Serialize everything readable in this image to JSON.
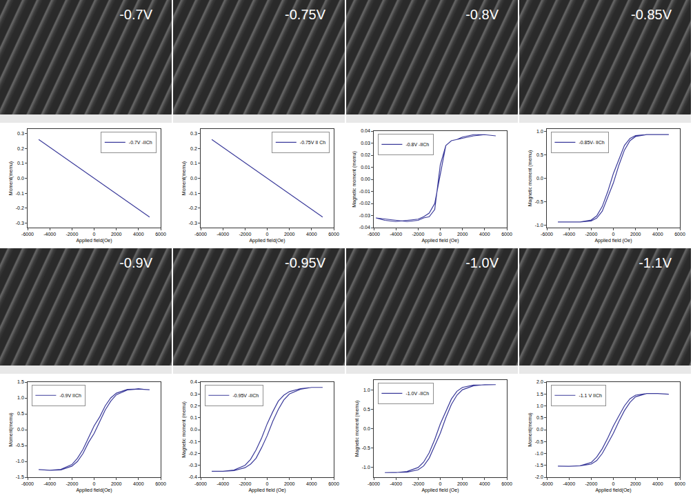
{
  "images": [
    {
      "label": "-0.7V"
    },
    {
      "label": "-0.75V"
    },
    {
      "label": "-0.8V"
    },
    {
      "label": "-0.85V"
    },
    {
      "label": "-0.9V"
    },
    {
      "label": "-0.95V"
    },
    {
      "label": "-1.0V"
    },
    {
      "label": "-1.1V"
    }
  ],
  "chart_data": [
    {
      "type": "line",
      "x_label": "Applied field(Oe)",
      "y_label": "Moment(memu)",
      "legend": "top right",
      "grid": false,
      "xlim": [
        -6000,
        6000
      ],
      "xticks": [
        -6000,
        -4000,
        -2000,
        0,
        2000,
        4000,
        6000
      ],
      "ylim": [
        -0.33,
        0.33
      ],
      "yticks": [
        -0.3,
        -0.2,
        -0.1,
        {
          "value": 0,
          "label": "0.0"
        },
        0.1,
        0.2,
        0.3
      ],
      "x": [
        -5000,
        -2500,
        0,
        2500,
        5000
      ],
      "series": [
        {
          "name": "-0.7V -IICh",
          "color": "#3a3a9a",
          "values": [
            0.26,
            0.13,
            0,
            -0.13,
            -0.26
          ]
        }
      ]
    },
    {
      "type": "line",
      "x_label": "Applied field(Oe)",
      "y_label": "Moment(memu)",
      "legend": "top right",
      "grid": false,
      "xlim": [
        -6000,
        6000
      ],
      "xticks": [
        -6000,
        -4000,
        -2000,
        0,
        2000,
        4000,
        6000
      ],
      "ylim": [
        -0.33,
        0.33
      ],
      "yticks": [
        -0.3,
        -0.2,
        -0.1,
        {
          "value": 0,
          "label": "0.0"
        },
        0.1,
        0.2,
        0.3
      ],
      "x": [
        -5000,
        -2500,
        0,
        2500,
        5000
      ],
      "series": [
        {
          "name": "-0.75V II Ch",
          "color": "#3a3a9a",
          "values": [
            0.26,
            0.13,
            0,
            -0.13,
            -0.26
          ]
        }
      ]
    },
    {
      "type": "line",
      "x_label": "Applied field (Oe)",
      "y_label": "Magnetic moment (memu)",
      "legend": "top left",
      "grid": false,
      "xlim": [
        -6000,
        6000
      ],
      "xticks": [
        -6000,
        -4000,
        -2000,
        0,
        2000,
        4000,
        6000
      ],
      "ylim": [
        -0.04,
        0.04
      ],
      "yticks": [
        -0.04,
        -0.03,
        -0.02,
        -0.01,
        {
          "value": 0,
          "label": "0.00"
        },
        0.01,
        0.02,
        0.03,
        0.04
      ],
      "x": [
        5000,
        4000,
        3000,
        2000,
        1500,
        1000,
        500,
        0,
        -500,
        -1000,
        -1500,
        -2000,
        -3000,
        -4000,
        -5000,
        -5800,
        -5800,
        -5000,
        -4000,
        -3000,
        -2000,
        -1500,
        -1000,
        -500,
        0,
        500,
        1000,
        1500,
        2000,
        3000,
        4000,
        5000
      ],
      "series": [
        {
          "name": "-0.8V -IICh",
          "color": "#3a3a9a",
          "values": [
            0.036,
            0.037,
            0.037,
            0.035,
            0.033,
            0.032,
            0.028,
            0.012,
            -0.025,
            -0.031,
            -0.032,
            -0.034,
            -0.035,
            -0.034,
            -0.033,
            -0.032,
            -0.032,
            -0.034,
            -0.035,
            -0.034,
            -0.033,
            -0.031,
            -0.028,
            -0.02,
            0.005,
            0.028,
            0.032,
            0.033,
            0.034,
            0.036,
            0.037,
            0.036
          ]
        }
      ]
    },
    {
      "type": "line",
      "x_label": "Applied field (Oe)",
      "y_label": "Magnetic moment (memu)",
      "legend": "top left",
      "grid": false,
      "xlim": [
        -6000,
        6000
      ],
      "xticks": [
        -6000,
        -4000,
        -2000,
        0,
        2000,
        4000,
        6000
      ],
      "ylim": [
        -1.05,
        1.05
      ],
      "yticks": [
        {
          "value": -1,
          "label": "-1.0"
        },
        -0.5,
        {
          "value": 0,
          "label": "0.0"
        },
        0.5,
        {
          "value": 1,
          "label": "1.0"
        }
      ],
      "x": [
        5000,
        4000,
        3000,
        2000,
        1500,
        1000,
        500,
        0,
        -500,
        -1000,
        -1500,
        -2000,
        -3000,
        -4000,
        -5000,
        -5000,
        -4000,
        -3000,
        -2000,
        -1500,
        -1000,
        -500,
        0,
        500,
        1000,
        1500,
        2000,
        3000,
        4000,
        5000
      ],
      "series": [
        {
          "name": "-0.85V- IICh",
          "color": "#3a3a9a",
          "values": [
            0.93,
            0.93,
            0.93,
            0.91,
            0.85,
            0.7,
            0.4,
            0.1,
            -0.28,
            -0.6,
            -0.8,
            -0.89,
            -0.93,
            -0.93,
            -0.93,
            -0.93,
            -0.93,
            -0.93,
            -0.91,
            -0.85,
            -0.7,
            -0.4,
            -0.1,
            0.28,
            0.6,
            0.8,
            0.89,
            0.93,
            0.93,
            0.93
          ]
        }
      ]
    },
    {
      "type": "line",
      "x_label": "Applied field(Oe)",
      "y_label": "Moment(memu)",
      "legend": "top left",
      "grid": false,
      "xlim": [
        -6000,
        6000
      ],
      "xticks": [
        -6000,
        -4000,
        -2000,
        0,
        2000,
        4000,
        6000
      ],
      "ylim": [
        -1.5,
        1.5
      ],
      "yticks": [
        -1.5,
        {
          "value": -1,
          "label": "-1.0"
        },
        -0.5,
        {
          "value": 0,
          "label": "0.0"
        },
        0.5,
        {
          "value": 1,
          "label": "1.0"
        },
        1.5
      ],
      "x": [
        5000,
        4000,
        3000,
        2000,
        1500,
        1000,
        500,
        0,
        -500,
        -1000,
        -1500,
        -2000,
        -3000,
        -4000,
        -5000,
        -5000,
        -4000,
        -3000,
        -2000,
        -1500,
        -1000,
        -500,
        0,
        500,
        1000,
        1500,
        2000,
        3000,
        4000,
        5000
      ],
      "series": [
        {
          "name": "-0.9V IICh",
          "color": "#3a3a9a",
          "values": [
            1.26,
            1.28,
            1.27,
            1.15,
            1.0,
            0.75,
            0.4,
            0.12,
            -0.25,
            -0.62,
            -0.9,
            -1.1,
            -1.25,
            -1.28,
            -1.26,
            -1.26,
            -1.28,
            -1.27,
            -1.15,
            -1.0,
            -0.75,
            -0.4,
            -0.12,
            0.25,
            0.62,
            0.9,
            1.1,
            1.25,
            1.28,
            1.26
          ]
        }
      ]
    },
    {
      "type": "line",
      "x_label": "Applied field (Oe)",
      "y_label": "Magnetic moment (memu)",
      "legend": "top left",
      "grid": false,
      "xlim": [
        -6000,
        6000
      ],
      "xticks": [
        -6000,
        -4000,
        -2000,
        0,
        2000,
        4000,
        6000
      ],
      "ylim": [
        -0.4,
        0.4
      ],
      "yticks": [
        -0.4,
        -0.3,
        -0.2,
        -0.1,
        {
          "value": 0,
          "label": "0.0"
        },
        0.1,
        0.2,
        0.3,
        0.4
      ],
      "x": [
        5000,
        4000,
        3000,
        2000,
        1500,
        1000,
        500,
        0,
        -500,
        -1000,
        -1500,
        -2000,
        -3000,
        -4000,
        -5000,
        -5000,
        -4000,
        -3000,
        -2000,
        -1500,
        -1000,
        -500,
        0,
        500,
        1000,
        1500,
        2000,
        3000,
        4000,
        5000
      ],
      "series": [
        {
          "name": "-0.95V -IICh",
          "color": "#3a3a9a",
          "values": [
            0.355,
            0.355,
            0.345,
            0.32,
            0.29,
            0.24,
            0.15,
            0.05,
            -0.07,
            -0.17,
            -0.25,
            -0.3,
            -0.34,
            -0.35,
            -0.35,
            -0.35,
            -0.35,
            -0.345,
            -0.32,
            -0.29,
            -0.24,
            -0.15,
            -0.05,
            0.07,
            0.17,
            0.25,
            0.3,
            0.34,
            0.355,
            0.355
          ]
        }
      ]
    },
    {
      "type": "line",
      "x_label": "Applied field (Oe)",
      "y_label": "Magnetic moment (memu)",
      "legend": "top left",
      "grid": false,
      "xlim": [
        -6000,
        6000
      ],
      "xticks": [
        -6000,
        -4000,
        -2000,
        0,
        2000,
        4000,
        6000
      ],
      "ylim": [
        -1.25,
        1.25
      ],
      "yticks": [
        {
          "value": -1,
          "label": "-1.0"
        },
        -0.5,
        {
          "value": 0,
          "label": "0.0"
        },
        0.5,
        {
          "value": 1,
          "label": "1.0"
        }
      ],
      "x": [
        5000,
        4000,
        3000,
        2000,
        1500,
        1000,
        500,
        0,
        -500,
        -1000,
        -1500,
        -2000,
        -3000,
        -4000,
        -5000,
        -5000,
        -4000,
        -3000,
        -2000,
        -1500,
        -1000,
        -500,
        0,
        500,
        1000,
        1500,
        2000,
        3000,
        4000,
        5000
      ],
      "series": [
        {
          "name": "-1.0V -IICh",
          "color": "#3a3a9a",
          "values": [
            1.13,
            1.13,
            1.12,
            1.06,
            0.96,
            0.76,
            0.44,
            0.12,
            -0.28,
            -0.62,
            -0.86,
            -1.0,
            -1.1,
            -1.13,
            -1.13,
            -1.13,
            -1.13,
            -1.12,
            -1.06,
            -0.96,
            -0.76,
            -0.44,
            -0.12,
            0.28,
            0.62,
            0.86,
            1.0,
            1.1,
            1.13,
            1.13
          ]
        }
      ]
    },
    {
      "type": "line",
      "x_label": "Applied field(Oe)",
      "y_label": "Moment(memu)",
      "legend": "top left",
      "grid": false,
      "xlim": [
        -6000,
        6000
      ],
      "xticks": [
        -6000,
        -4000,
        -2000,
        0,
        2000,
        4000,
        6000
      ],
      "ylim": [
        -2,
        2
      ],
      "yticks": [
        {
          "value": -2,
          "label": "-2.0"
        },
        -1.5,
        {
          "value": -1,
          "label": "-1.0"
        },
        -0.5,
        {
          "value": 0,
          "label": "0.0"
        },
        0.5,
        {
          "value": 1,
          "label": "1.0"
        },
        1.5,
        {
          "value": 2,
          "label": "2.0"
        }
      ],
      "x": [
        5000,
        4000,
        3000,
        2000,
        1500,
        1000,
        500,
        0,
        -500,
        -1000,
        -1500,
        -2000,
        -3000,
        -4000,
        -5000,
        -5000,
        -4000,
        -3000,
        -2000,
        -1500,
        -1000,
        -500,
        0,
        500,
        1000,
        1500,
        2000,
        3000,
        4000,
        5000
      ],
      "series": [
        {
          "name": "-1.1 V IICh",
          "color": "#3a3a9a",
          "values": [
            1.49,
            1.52,
            1.52,
            1.45,
            1.3,
            1.0,
            0.58,
            0.15,
            -0.35,
            -0.8,
            -1.15,
            -1.38,
            -1.52,
            -1.54,
            -1.53,
            -1.53,
            -1.54,
            -1.52,
            -1.45,
            -1.3,
            -1.0,
            -0.58,
            -0.15,
            0.35,
            0.8,
            1.15,
            1.38,
            1.52,
            1.52,
            1.49
          ]
        }
      ]
    }
  ]
}
